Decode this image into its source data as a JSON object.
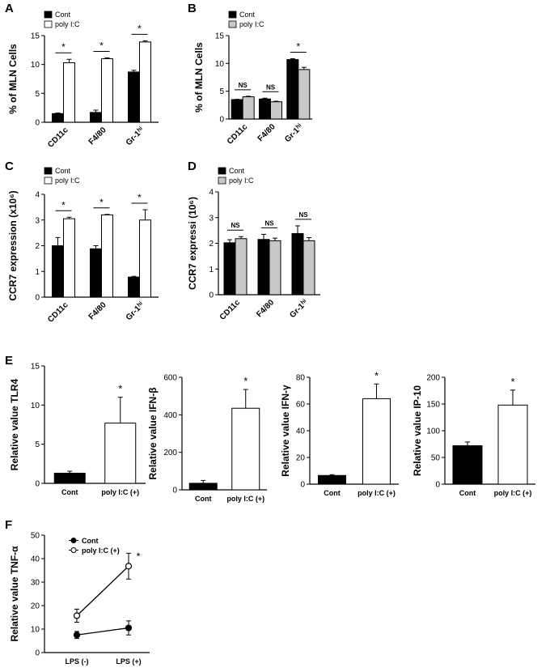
{
  "panels": {
    "a": "A",
    "b": "B",
    "c": "C",
    "d": "D",
    "e": "E",
    "f": "F"
  },
  "chart_data": [
    {
      "panel": "A",
      "type": "bar",
      "ylabel": "% of MLN Cells",
      "categories": [
        "CD11c",
        "F4/80",
        "Gr-1hi"
      ],
      "series": [
        {
          "name": "Cont",
          "fill": "#000000",
          "values": [
            1.5,
            1.7,
            8.7
          ],
          "err": [
            0.1,
            0.4,
            0.3
          ]
        },
        {
          "name": "poly I:C",
          "fill": "#ffffff",
          "values": [
            10.3,
            11.0,
            13.9
          ],
          "err": [
            0.6,
            0.15,
            0.2
          ]
        }
      ],
      "sig": [
        "*",
        "*",
        "*"
      ],
      "ylim": [
        0,
        15
      ],
      "yticks": [
        0,
        5,
        10,
        15
      ]
    },
    {
      "panel": "B",
      "type": "bar",
      "ylabel": "% of MLN Cells",
      "categories": [
        "CD11c",
        "F4/80",
        "Gr-1hi"
      ],
      "series": [
        {
          "name": "Cont",
          "fill": "#000000",
          "values": [
            3.5,
            3.6,
            10.7
          ],
          "err": [
            0.05,
            0.15,
            0.15
          ]
        },
        {
          "name": "poly I:C",
          "fill": "#c8c8c8",
          "values": [
            4.0,
            3.1,
            8.9
          ],
          "err": [
            0.1,
            0.1,
            0.4
          ]
        }
      ],
      "sig": [
        "NS",
        "NS",
        "*"
      ],
      "ylim": [
        0,
        15
      ],
      "yticks": [
        0,
        5,
        10,
        15
      ]
    },
    {
      "panel": "C",
      "type": "bar",
      "ylabel": "CCR7 expression (x10⁶)",
      "categories": [
        "CD11c",
        "F4/80",
        "Gr-1hi"
      ],
      "series": [
        {
          "name": "Cont",
          "fill": "#000000",
          "values": [
            2.0,
            1.88,
            0.78
          ],
          "err": [
            0.32,
            0.12,
            0.03
          ]
        },
        {
          "name": "poly I:C",
          "fill": "#ffffff",
          "values": [
            3.05,
            3.2,
            3.0
          ],
          "err": [
            0.06,
            0.02,
            0.4
          ]
        }
      ],
      "sig": [
        "*",
        "*",
        "*"
      ],
      "ylim": [
        0,
        4
      ],
      "yticks": [
        0,
        1,
        2,
        3,
        4
      ]
    },
    {
      "panel": "D",
      "type": "bar",
      "ylabel": "CCR7 expressi (10⁶)",
      "categories": [
        "CD11c",
        "F4/80",
        "Gr-1hi"
      ],
      "series": [
        {
          "name": "Cont",
          "fill": "#000000",
          "values": [
            2.02,
            2.15,
            2.38
          ],
          "err": [
            0.12,
            0.2,
            0.3
          ]
        },
        {
          "name": "poly I:C",
          "fill": "#c8c8c8",
          "values": [
            2.18,
            2.1,
            2.1
          ],
          "err": [
            0.08,
            0.1,
            0.12
          ]
        }
      ],
      "sig": [
        "NS",
        "NS",
        "NS"
      ],
      "ylim": [
        0,
        4
      ],
      "yticks": [
        0,
        1,
        2,
        3,
        4
      ]
    },
    {
      "panel": "E",
      "type": "bar",
      "ylabel": "Relative  value TLR4",
      "categories": [
        "Cont",
        "poly I:C (+)"
      ],
      "values": [
        1.3,
        7.7
      ],
      "err": [
        0.25,
        3.3
      ],
      "fills": [
        "#000000",
        "#ffffff"
      ],
      "sig": "*",
      "ylim": [
        0,
        15
      ],
      "yticks": [
        0,
        5,
        10,
        15
      ]
    },
    {
      "panel": "E",
      "type": "bar",
      "ylabel": "Relative  value IFN-β",
      "categories": [
        "Cont",
        "poly I:C (+)"
      ],
      "values": [
        35,
        435
      ],
      "err": [
        15,
        100
      ],
      "fills": [
        "#000000",
        "#ffffff"
      ],
      "sig": "*",
      "ylim": [
        0,
        600
      ],
      "yticks": [
        0,
        200,
        400,
        600
      ]
    },
    {
      "panel": "E",
      "type": "bar",
      "ylabel": "Relative  value IFN-γ",
      "categories": [
        "Cont",
        "poly I:C (+)"
      ],
      "values": [
        6.5,
        64
      ],
      "err": [
        0.6,
        11
      ],
      "fills": [
        "#000000",
        "#ffffff"
      ],
      "sig": "*",
      "ylim": [
        0,
        80
      ],
      "yticks": [
        0,
        20,
        40,
        60,
        80
      ]
    },
    {
      "panel": "E",
      "type": "bar",
      "ylabel": "Relative  value IP-10",
      "categories": [
        "Cont",
        "poly I:C (+)"
      ],
      "values": [
        72,
        148
      ],
      "err": [
        7,
        28
      ],
      "fills": [
        "#000000",
        "#ffffff"
      ],
      "sig": "*",
      "ylim": [
        0,
        200
      ],
      "yticks": [
        0,
        50,
        100,
        150,
        200
      ]
    },
    {
      "panel": "F",
      "type": "line",
      "ylabel": "Relative  value TNF-α",
      "categories": [
        "LPS (-)",
        "LPS (+)"
      ],
      "series": [
        {
          "name": "Cont",
          "marker": "filled",
          "values": [
            7.5,
            10.5
          ],
          "err": [
            1.5,
            3.0
          ]
        },
        {
          "name": "poly I:C (+)",
          "marker": "open",
          "values": [
            15.7,
            36.8
          ],
          "err": [
            2.8,
            5.5
          ]
        }
      ],
      "sig": "*",
      "ylim": [
        0,
        50
      ],
      "yticks": [
        0,
        10,
        20,
        30,
        40,
        50
      ]
    }
  ]
}
